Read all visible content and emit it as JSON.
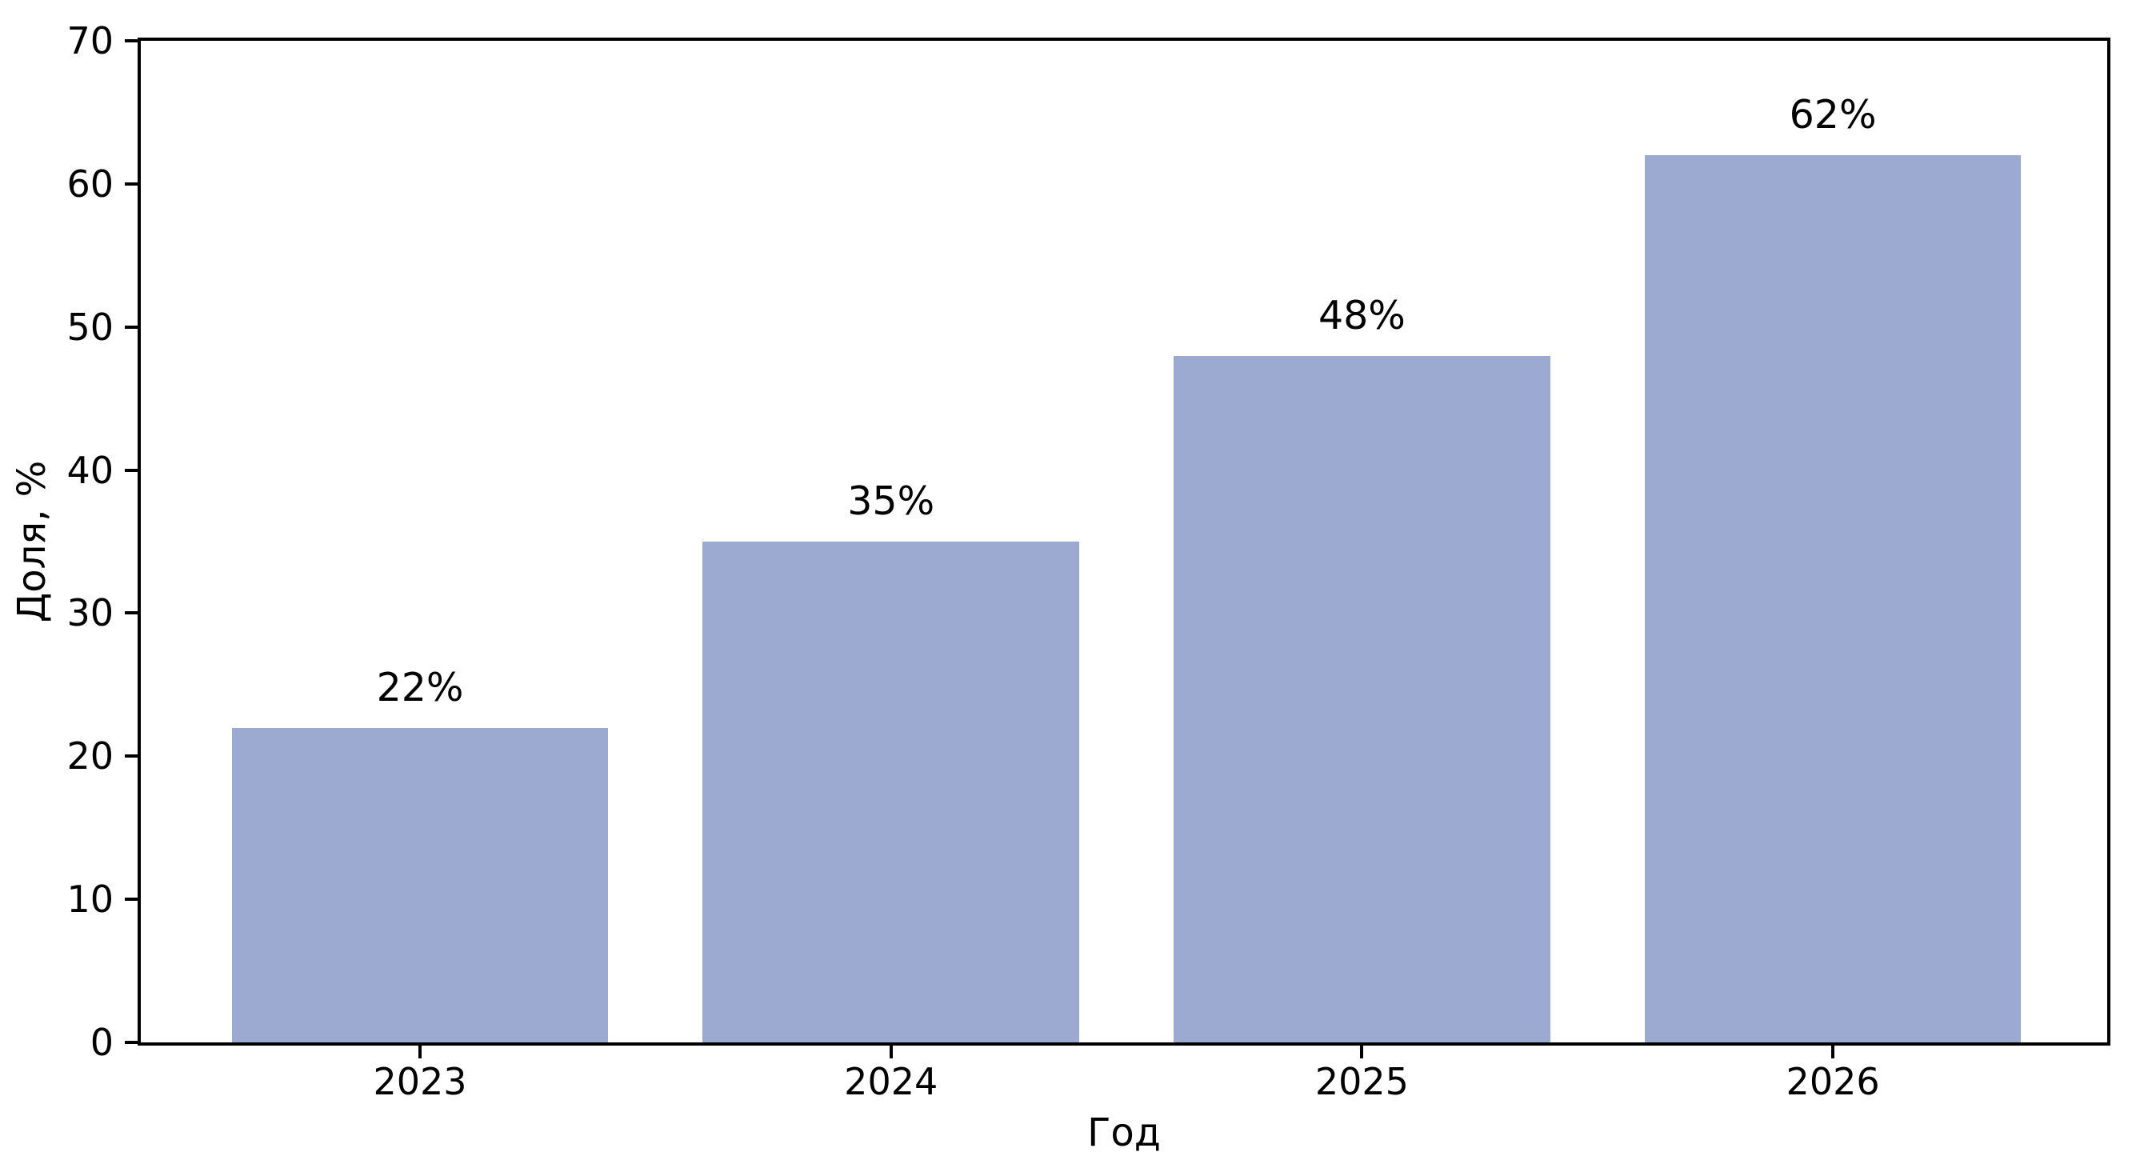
{
  "figure": {
    "background_color": "#ffffff",
    "axis_color": "#000000",
    "text_color": "#000000"
  },
  "chart_data": {
    "type": "bar",
    "categories": [
      "2023",
      "2024",
      "2025",
      "2026"
    ],
    "values": [
      22,
      35,
      48,
      62
    ],
    "value_labels": [
      "22%",
      "35%",
      "48%",
      "62%"
    ],
    "title": "",
    "xlabel": "Год",
    "ylabel": "Доля, %",
    "ylim": [
      0,
      70
    ],
    "yticks": [
      0,
      10,
      20,
      30,
      40,
      50,
      60,
      70
    ],
    "grid": false,
    "legend": "none",
    "frame": "full-box",
    "bar_color": "#9CA9D0",
    "bar_width_pct": 19.14,
    "bar_centers_pct": [
      14.2,
      38.15,
      62.1,
      86.05
    ]
  }
}
